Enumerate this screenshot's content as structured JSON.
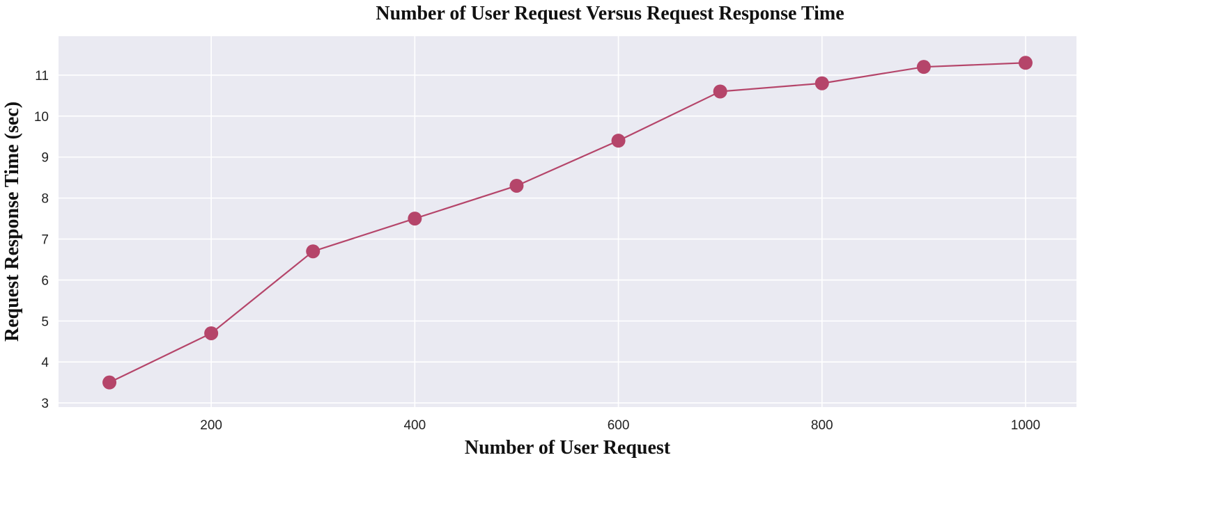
{
  "chart_data": {
    "type": "line",
    "title": "Number of User Request Versus Request Response Time",
    "xlabel": "Number of User Request",
    "ylabel": "Request Response Time (sec)",
    "x": [
      100,
      200,
      300,
      400,
      500,
      600,
      700,
      800,
      900,
      1000
    ],
    "series": [
      {
        "values": [
          3.5,
          4.7,
          6.7,
          7.5,
          8.3,
          9.4,
          10.6,
          10.8,
          11.2,
          11.3
        ]
      }
    ],
    "xlim": [
      50,
      1050
    ],
    "ylim": [
      2.9,
      11.95
    ],
    "xticks": [
      200,
      400,
      600,
      800,
      1000
    ],
    "xtick_labels": [
      "200",
      "400",
      "600",
      "800",
      "1000"
    ],
    "yticks": [
      3,
      4,
      5,
      6,
      7,
      8,
      9,
      10,
      11
    ],
    "ytick_labels": [
      "3",
      "4",
      "5",
      "6",
      "7",
      "8",
      "9",
      "10",
      "11"
    ],
    "grid": true,
    "legend": false,
    "colors": {
      "line": "#b5456a",
      "marker": "#b5456a",
      "plot_background": "#eaeaf2",
      "grid": "#ffffff"
    }
  }
}
